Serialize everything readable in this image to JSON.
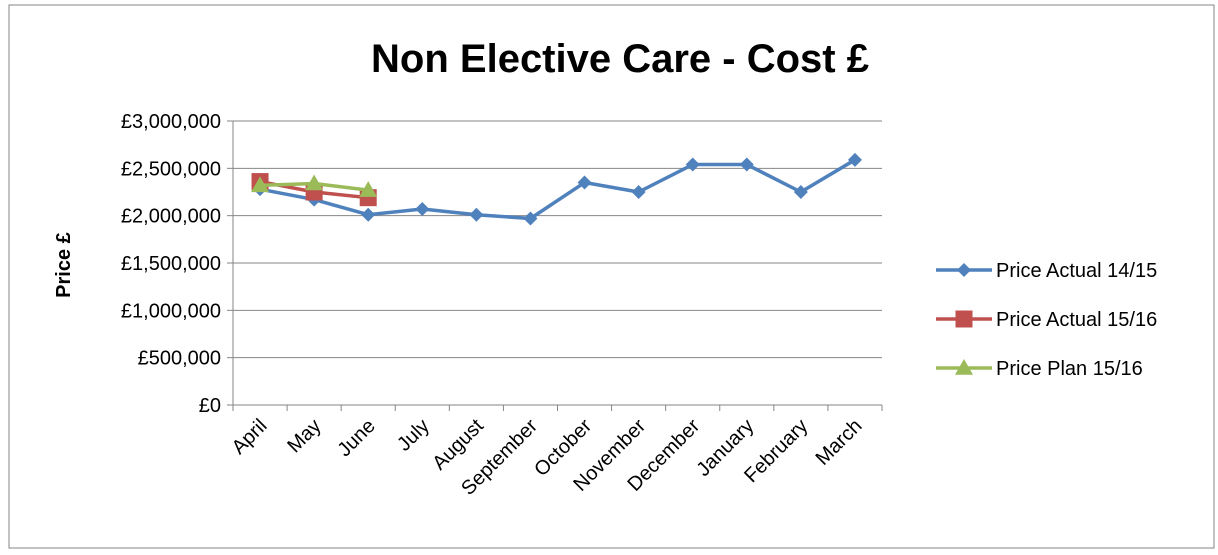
{
  "chart_data": {
    "type": "line",
    "title": "Non Elective Care - Cost £",
    "ylabel": "Price £",
    "xlabel": "",
    "categories": [
      "April",
      "May",
      "June",
      "July",
      "August",
      "September",
      "October",
      "November",
      "December",
      "January",
      "February",
      "March"
    ],
    "y_tick_labels": [
      "£0",
      "£500,000",
      "£1,000,000",
      "£1,500,000",
      "£2,000,000",
      "£2,500,000",
      "£3,000,000"
    ],
    "ylim": [
      0,
      3000000
    ],
    "y_tick_step": 500000,
    "grid": true,
    "legend_position": "right",
    "series": [
      {
        "name": "Price Actual 14/15",
        "color": "#4F81BD",
        "marker": "diamond",
        "values": [
          2280000,
          2170000,
          2010000,
          2070000,
          2010000,
          1970000,
          2350000,
          2250000,
          2540000,
          2540000,
          2250000,
          2590000
        ]
      },
      {
        "name": "Price Actual 15/16",
        "color": "#C0504D",
        "marker": "square",
        "values": [
          2360000,
          2250000,
          2190000,
          null,
          null,
          null,
          null,
          null,
          null,
          null,
          null,
          null
        ]
      },
      {
        "name": "Price Plan 15/16",
        "color": "#9BBB59",
        "marker": "triangle",
        "values": [
          2320000,
          2340000,
          2270000,
          null,
          null,
          null,
          null,
          null,
          null,
          null,
          null,
          null
        ]
      }
    ]
  }
}
